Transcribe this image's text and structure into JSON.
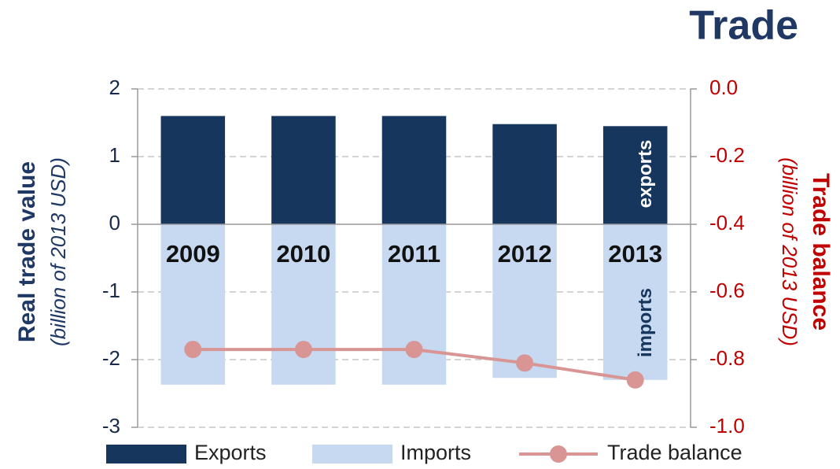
{
  "chart_data": {
    "type": "bar",
    "title": "Trade",
    "categories": [
      "2009",
      "2010",
      "2011",
      "2012",
      "2013"
    ],
    "series": [
      {
        "name": "Exports",
        "color": "#17365d",
        "values": [
          1.6,
          1.6,
          1.6,
          1.48,
          1.45
        ]
      },
      {
        "name": "Imports",
        "color": "#c6d9f1",
        "values": [
          -2.37,
          -2.37,
          -2.37,
          -2.27,
          -2.3
        ]
      },
      {
        "name": "Trade balance",
        "color": "#d99594",
        "axis": "y2",
        "type": "line",
        "values": [
          -0.77,
          -0.77,
          -0.77,
          -0.81,
          -0.86
        ]
      }
    ],
    "ylim": [
      -3,
      2
    ],
    "yticks": [
      -3,
      -2,
      -1,
      0,
      1,
      2
    ],
    "y2lim": [
      -1,
      0
    ],
    "y2ticks": [
      {
        "value": -1,
        "label": "-1.0"
      },
      -0.8,
      -0.6,
      -0.4,
      -0.2,
      {
        "value": 0,
        "label": "0.0"
      }
    ],
    "ylabel": "Real trade value",
    "ylabel_sub": "(billion of 2013 USD)",
    "y2label": "Trade balance",
    "y2label_sub": "(billion of 2013 USD)",
    "annotations": [
      "exports",
      "imports"
    ],
    "grid": true,
    "legend": "bottom"
  }
}
